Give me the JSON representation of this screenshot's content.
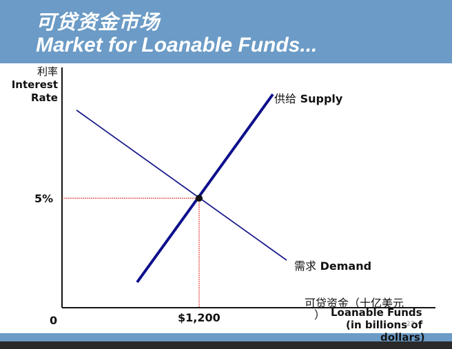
{
  "title": {
    "chinese": "可贷资金市场",
    "english": "Market for Loanable Funds..."
  },
  "y_axis": {
    "label_cn": "利率",
    "label_en_line1": "Interest",
    "label_en_line2": "Rate",
    "tick_label": "5%"
  },
  "x_axis": {
    "label_cn": "可贷资金（十亿美元",
    "label_cn_close": "）",
    "label_en_line1": "Loanable Funds",
    "label_en_line2": "(in billions of",
    "label_en_line3": "dollars)",
    "tick_label": "$1,200",
    "origin_label": "0"
  },
  "curves": {
    "supply_cn": "供给",
    "supply_en": "Supply",
    "demand_cn": "需求",
    "demand_en": "Demand"
  },
  "equilibrium": {
    "interest_rate_percent": 5,
    "loanable_funds_billions": 1200
  },
  "page_number": "27",
  "colors": {
    "title_bar": "#6b9bc6",
    "supply_line": "#0d0f8c",
    "demand_line": "#1a1a8a",
    "guide_lines": "#e0403a"
  }
}
